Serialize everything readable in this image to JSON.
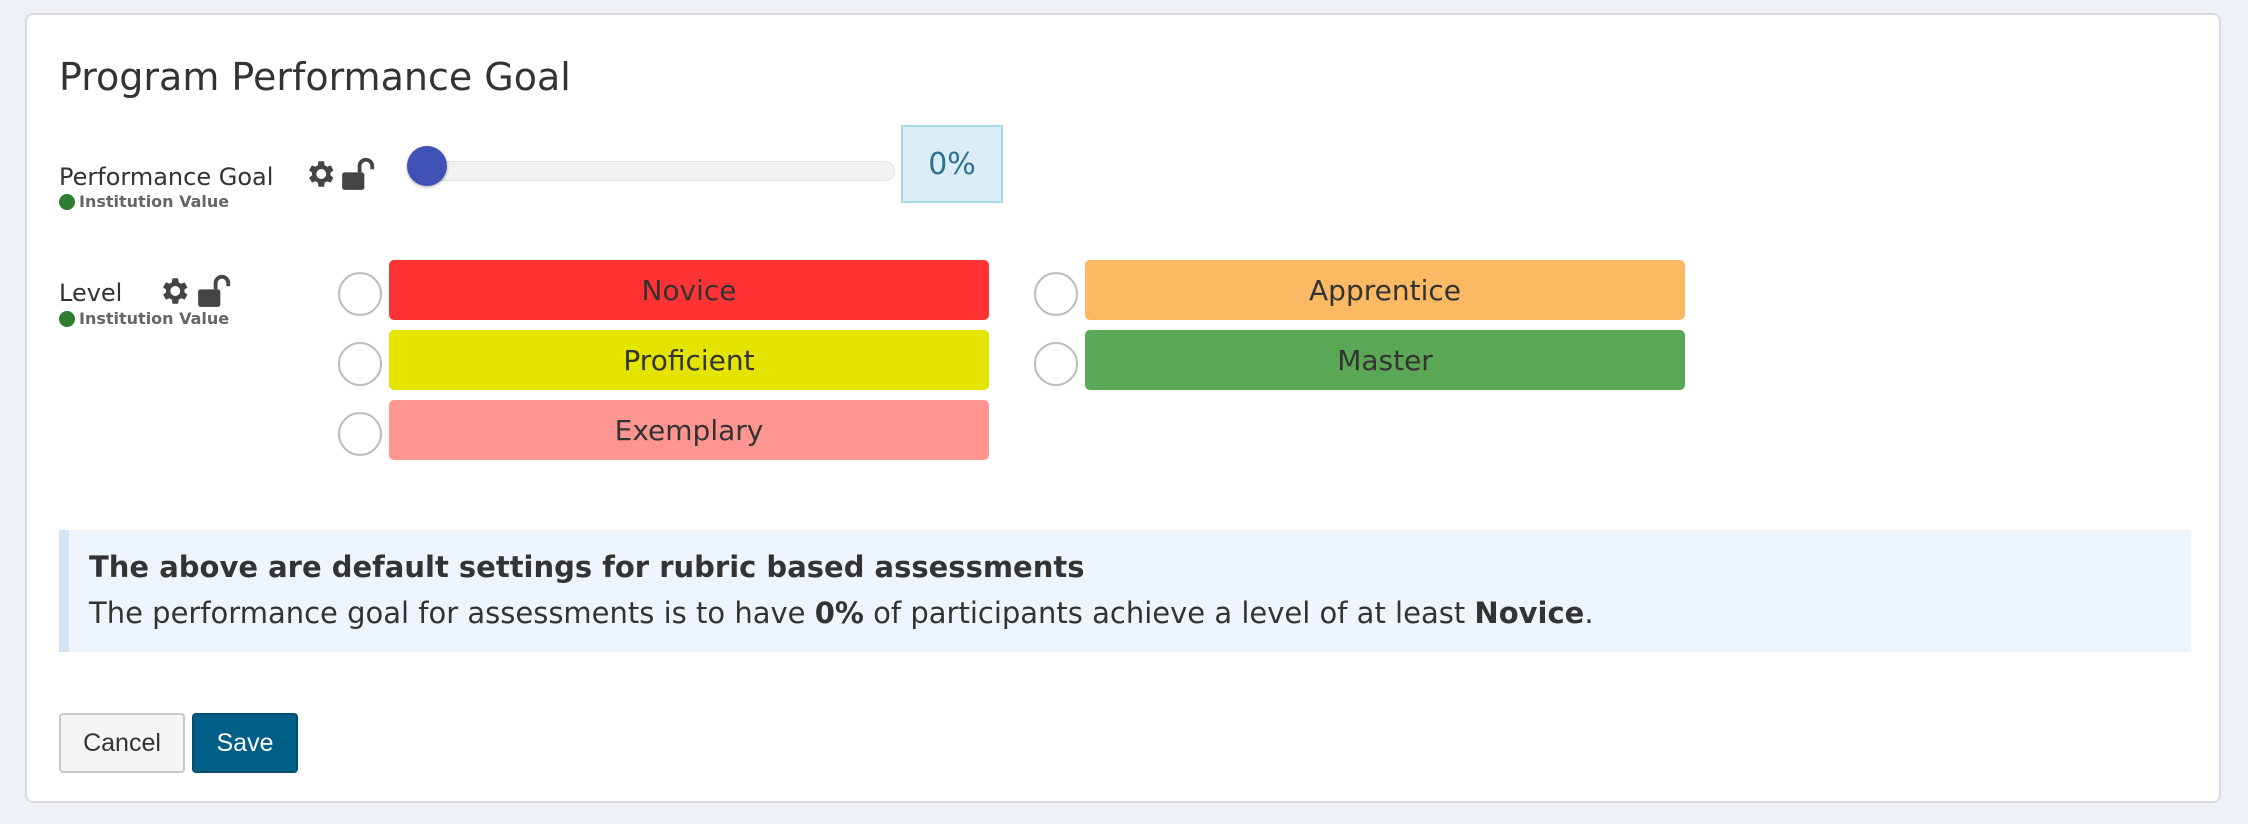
{
  "card": {
    "title": "Program Performance Goal"
  },
  "performance_goal": {
    "label": "Performance Goal",
    "source": "Institution Value",
    "value_display": "0%",
    "value_percent": 0,
    "icons": [
      "gear-icon",
      "unlock-icon"
    ]
  },
  "level": {
    "label": "Level",
    "source": "Institution Value",
    "selected": "Novice",
    "options": [
      {
        "label": "Novice",
        "color": "#ff3333",
        "checked": true
      },
      {
        "label": "Apprentice",
        "color": "#fbb964",
        "checked": false
      },
      {
        "label": "Proficient",
        "color": "#e4e400",
        "checked": false
      },
      {
        "label": "Master",
        "color": "#5aa855",
        "checked": false
      },
      {
        "label": "Exemplary",
        "color": "#ff9591",
        "checked": false
      }
    ]
  },
  "info": {
    "title": "The above are default settings for rubric based assessments",
    "text_1": "The performance goal for assessments is to have ",
    "goal": "0%",
    "text_2": " of participants achieve a level of at least ",
    "level": "Novice",
    "text_3": "."
  },
  "actions": {
    "cancel_label": "Cancel",
    "save_label": "Save"
  },
  "colors": {
    "accent": "#2f8ed1",
    "slider": "#3f51b5",
    "save": "#005f87",
    "institution_dot": "#2e7d32"
  }
}
